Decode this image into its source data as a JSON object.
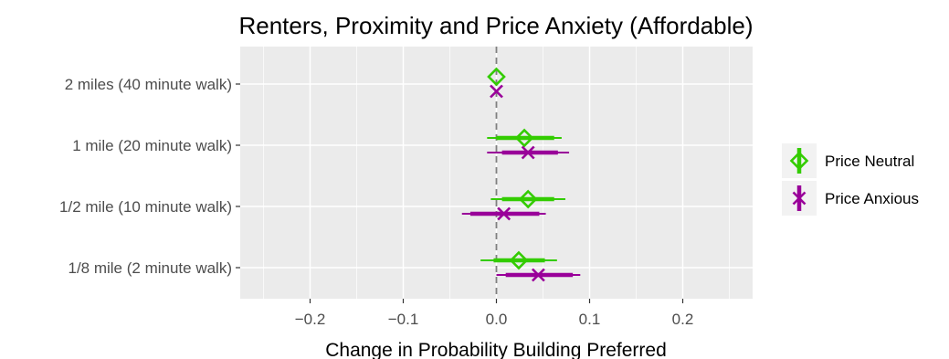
{
  "chart_data": {
    "type": "scatter",
    "subtype": "coefficient plot with interval bars (dot-and-whisker)",
    "title": "Renters, Proximity and Price Anxiety (Affordable)",
    "xlabel": "Change in Probability Building Preferred",
    "ylabel": "",
    "xlim": [
      -0.275,
      0.275
    ],
    "x_ticks": [
      -0.2,
      -0.1,
      0.0,
      0.1,
      0.2
    ],
    "x_tick_labels": [
      "−0.2",
      "−0.1",
      "0.0",
      "0.1",
      "0.2"
    ],
    "categories": [
      "2 miles (40 minute walk)",
      "1 mile (20 minute walk)",
      "1/2 mile (10 minute walk)",
      "1/8 mile (2 minute walk)"
    ],
    "reference_line": {
      "x": 0,
      "style": "dashed",
      "color": "#808080"
    },
    "grid": true,
    "legend": {
      "position": "right"
    },
    "series": [
      {
        "name": "Price Neutral",
        "color": "#33cc00",
        "marker": "diamond",
        "estimates": [
          0.0,
          0.03,
          0.034,
          0.024
        ],
        "inner_interval": [
          [
            0.0,
            0.0
          ],
          [
            0.0,
            0.062
          ],
          [
            0.006,
            0.062
          ],
          [
            -0.003,
            0.052
          ]
        ],
        "outer_interval": [
          [
            0.0,
            0.0
          ],
          [
            -0.01,
            0.07
          ],
          [
            -0.006,
            0.074
          ],
          [
            -0.017,
            0.065
          ]
        ]
      },
      {
        "name": "Price Anxious",
        "color": "#990099",
        "marker": "x",
        "estimates": [
          0.0,
          0.034,
          0.008,
          0.045
        ],
        "inner_interval": [
          [
            0.0,
            0.0
          ],
          [
            0.006,
            0.066
          ],
          [
            -0.028,
            0.046
          ],
          [
            0.01,
            0.082
          ]
        ],
        "outer_interval": [
          [
            0.0,
            0.0
          ],
          [
            -0.01,
            0.078
          ],
          [
            -0.037,
            0.053
          ],
          [
            0.0,
            0.09
          ]
        ]
      }
    ]
  }
}
